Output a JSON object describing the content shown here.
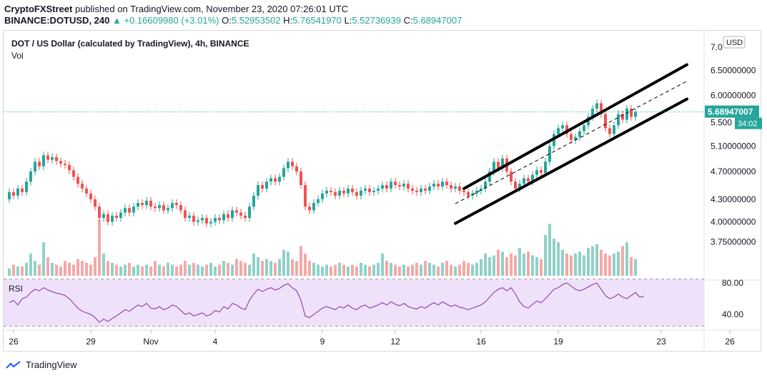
{
  "header": {
    "publisher": "CryptoFXStreet",
    "published_text": "published on TradingView.com, November 23, 2020 07:26:01 UTC",
    "symbol": "BINANCE:DOTUSD, 240",
    "change_arrow": "▲",
    "change": "+0.16609980 (+3.01%)",
    "o_label": "O:",
    "o_value": "5.52953502",
    "h_label": "H:",
    "h_value": "5.76541970",
    "l_label": "L:",
    "l_value": "5.52736939",
    "c_label": "C:",
    "c_value": "5.68947007"
  },
  "legend": {
    "title": "DOT / US Dollar (calculated by TradingView), 4h, BINANCE",
    "vol_label": "Vol"
  },
  "rsi_panel": {
    "label": "RSI",
    "ticks": [
      "80.00",
      "40.00"
    ]
  },
  "price_axis": {
    "currency": "USD",
    "ticks": [
      "7.0",
      "6.50000000",
      "6.00000000",
      "5.500",
      "5.10000000",
      "4.70000000",
      "4.30000000",
      "4.00000000",
      "3.75000000"
    ],
    "last_price": "5.68947007",
    "countdown": "34:02"
  },
  "time_axis": {
    "ticks": [
      "26",
      "29",
      "Nov",
      "4",
      "9",
      "12",
      "16",
      "19",
      "23",
      "26"
    ]
  },
  "footer": {
    "brand": "TradingView"
  },
  "colors": {
    "up": "#26a69a",
    "down": "#ef5350",
    "vol_up": "#8fd1c9",
    "vol_down": "#f4a9a7",
    "rsi": "#7e2f9c",
    "rsi_band": "#f0e1fb",
    "last_price": "#26a69a"
  },
  "chart_data": {
    "type": "candlestick",
    "title": "DOT / US Dollar (calculated by TradingView), 4h, BINANCE",
    "interval": "4h",
    "y_scale": "log",
    "ylim": [
      3.62,
      7.1
    ],
    "x_range_candles": 149,
    "candles": [
      [
        4.3,
        4.4
      ],
      [
        4.4,
        4.35
      ],
      [
        4.35,
        4.45
      ],
      [
        4.45,
        4.4
      ],
      [
        4.4,
        4.55
      ],
      [
        4.55,
        4.7
      ],
      [
        4.7,
        4.85
      ],
      [
        4.85,
        4.78
      ],
      [
        4.78,
        4.95
      ],
      [
        4.95,
        4.88
      ],
      [
        4.88,
        4.92
      ],
      [
        4.92,
        4.86
      ],
      [
        4.86,
        4.82
      ],
      [
        4.82,
        4.8
      ],
      [
        4.8,
        4.72
      ],
      [
        4.72,
        4.62
      ],
      [
        4.62,
        4.52
      ],
      [
        4.52,
        4.45
      ],
      [
        4.45,
        4.38
      ],
      [
        4.38,
        4.3
      ],
      [
        4.3,
        4.2
      ],
      [
        4.2,
        4.05
      ],
      [
        4.05,
        4.1
      ],
      [
        4.1,
        4.0
      ],
      [
        4.0,
        4.08
      ],
      [
        4.08,
        4.05
      ],
      [
        4.05,
        4.12
      ],
      [
        4.12,
        4.18
      ],
      [
        4.18,
        4.12
      ],
      [
        4.12,
        4.2
      ],
      [
        4.2,
        4.25
      ],
      [
        4.25,
        4.22
      ],
      [
        4.22,
        4.28
      ],
      [
        4.28,
        4.2
      ],
      [
        4.2,
        4.18
      ],
      [
        4.18,
        4.22
      ],
      [
        4.22,
        4.15
      ],
      [
        4.15,
        4.18
      ],
      [
        4.18,
        4.25
      ],
      [
        4.25,
        4.22
      ],
      [
        4.22,
        4.15
      ],
      [
        4.15,
        4.05
      ],
      [
        4.05,
        4.08
      ],
      [
        4.08,
        4.0
      ],
      [
        4.0,
        4.02
      ],
      [
        4.02,
        4.05
      ],
      [
        4.05,
        3.98
      ],
      [
        3.98,
        4.0
      ],
      [
        4.0,
        4.05
      ],
      [
        4.05,
        4.02
      ],
      [
        4.02,
        4.1
      ],
      [
        4.1,
        4.05
      ],
      [
        4.05,
        4.15
      ],
      [
        4.15,
        4.12
      ],
      [
        4.12,
        4.08
      ],
      [
        4.08,
        4.05
      ],
      [
        4.05,
        4.2
      ],
      [
        4.2,
        4.35
      ],
      [
        4.35,
        4.5
      ],
      [
        4.5,
        4.45
      ],
      [
        4.45,
        4.55
      ],
      [
        4.55,
        4.6
      ],
      [
        4.6,
        4.55
      ],
      [
        4.55,
        4.62
      ],
      [
        4.62,
        4.75
      ],
      [
        4.75,
        4.85
      ],
      [
        4.85,
        4.78
      ],
      [
        4.78,
        4.7
      ],
      [
        4.7,
        4.5
      ],
      [
        4.5,
        4.2
      ],
      [
        4.2,
        4.15
      ],
      [
        4.15,
        4.25
      ],
      [
        4.25,
        4.3
      ],
      [
        4.3,
        4.38
      ],
      [
        4.38,
        4.42
      ],
      [
        4.42,
        4.4
      ],
      [
        4.4,
        4.35
      ],
      [
        4.35,
        4.42
      ],
      [
        4.42,
        4.38
      ],
      [
        4.38,
        4.45
      ],
      [
        4.45,
        4.4
      ],
      [
        4.4,
        4.35
      ],
      [
        4.35,
        4.42
      ],
      [
        4.42,
        4.45
      ],
      [
        4.45,
        4.4
      ],
      [
        4.4,
        4.42
      ],
      [
        4.42,
        4.45
      ],
      [
        4.45,
        4.5
      ],
      [
        4.5,
        4.45
      ],
      [
        4.45,
        4.55
      ],
      [
        4.55,
        4.5
      ],
      [
        4.5,
        4.48
      ],
      [
        4.48,
        4.52
      ],
      [
        4.52,
        4.45
      ],
      [
        4.45,
        4.42
      ],
      [
        4.42,
        4.4
      ],
      [
        4.4,
        4.45
      ],
      [
        4.45,
        4.42
      ],
      [
        4.42,
        4.48
      ],
      [
        4.48,
        4.52
      ],
      [
        4.52,
        4.48
      ],
      [
        4.48,
        4.55
      ],
      [
        4.55,
        4.5
      ],
      [
        4.5,
        4.45
      ],
      [
        4.45,
        4.48
      ],
      [
        4.48,
        4.42
      ],
      [
        4.42,
        4.4
      ],
      [
        4.4,
        4.35
      ],
      [
        4.35,
        4.38
      ],
      [
        4.38,
        4.42
      ],
      [
        4.42,
        4.45
      ],
      [
        4.45,
        4.55
      ],
      [
        4.55,
        4.7
      ],
      [
        4.7,
        4.85
      ],
      [
        4.85,
        4.75
      ],
      [
        4.75,
        4.9
      ],
      [
        4.9,
        4.7
      ],
      [
        4.7,
        4.55
      ],
      [
        4.55,
        4.45
      ],
      [
        4.45,
        4.52
      ],
      [
        4.52,
        4.6
      ],
      [
        4.6,
        4.55
      ],
      [
        4.55,
        4.65
      ],
      [
        4.65,
        4.72
      ],
      [
        4.72,
        4.68
      ],
      [
        4.68,
        4.85
      ],
      [
        4.85,
        5.1
      ],
      [
        5.1,
        5.3
      ],
      [
        5.3,
        5.4
      ],
      [
        5.4,
        5.45
      ],
      [
        5.45,
        5.3
      ],
      [
        5.3,
        5.2
      ],
      [
        5.2,
        5.25
      ],
      [
        5.25,
        5.35
      ],
      [
        5.35,
        5.45
      ],
      [
        5.45,
        5.6
      ],
      [
        5.6,
        5.75
      ],
      [
        5.75,
        5.85
      ],
      [
        5.85,
        5.65
      ],
      [
        5.65,
        5.4
      ],
      [
        5.4,
        5.3
      ],
      [
        5.3,
        5.45
      ],
      [
        5.45,
        5.65
      ],
      [
        5.65,
        5.55
      ],
      [
        5.55,
        5.75
      ],
      [
        5.75,
        5.6
      ],
      [
        5.6,
        5.69
      ]
    ],
    "volume": [
      4,
      6,
      5,
      5,
      7,
      12,
      8,
      6,
      18,
      10,
      7,
      6,
      5,
      8,
      7,
      6,
      9,
      8,
      7,
      6,
      10,
      30,
      12,
      8,
      7,
      6,
      5,
      6,
      7,
      5,
      6,
      5,
      6,
      5,
      8,
      6,
      5,
      7,
      6,
      5,
      6,
      8,
      6,
      7,
      6,
      5,
      6,
      7,
      5,
      6,
      8,
      7,
      6,
      9,
      8,
      7,
      6,
      12,
      10,
      8,
      9,
      8,
      7,
      9,
      14,
      13,
      9,
      8,
      16,
      12,
      8,
      7,
      6,
      5,
      6,
      5,
      6,
      7,
      6,
      5,
      6,
      5,
      7,
      6,
      5,
      6,
      7,
      12,
      8,
      7,
      6,
      5,
      6,
      5,
      6,
      7,
      6,
      8,
      7,
      6,
      5,
      7,
      8,
      6,
      5,
      6,
      8,
      7,
      6,
      7,
      9,
      12,
      10,
      11,
      14,
      13,
      10,
      12,
      11,
      15,
      12,
      13,
      11,
      10,
      9,
      22,
      28,
      20,
      18,
      14,
      12,
      11,
      12,
      13,
      11,
      15,
      16,
      17,
      14,
      12,
      11,
      12,
      13,
      16,
      18,
      10,
      9,
      8,
      9
    ],
    "rsi": [
      55,
      58,
      52,
      60,
      62,
      68,
      72,
      70,
      74,
      71,
      69,
      67,
      66,
      64,
      60,
      54,
      48,
      44,
      42,
      40,
      36,
      30,
      34,
      31,
      35,
      38,
      42,
      46,
      44,
      48,
      52,
      50,
      54,
      48,
      47,
      50,
      46,
      48,
      52,
      50,
      45,
      40,
      42,
      38,
      40,
      42,
      38,
      40,
      45,
      43,
      50,
      47,
      54,
      52,
      48,
      46,
      58,
      66,
      72,
      69,
      72,
      74,
      71,
      73,
      77,
      79,
      74,
      70,
      58,
      38,
      36,
      40,
      44,
      48,
      50,
      48,
      46,
      50,
      48,
      52,
      48,
      46,
      50,
      52,
      48,
      50,
      52,
      55,
      52,
      56,
      53,
      51,
      54,
      50,
      48,
      47,
      50,
      48,
      52,
      55,
      52,
      56,
      53,
      50,
      52,
      49,
      48,
      46,
      48,
      50,
      52,
      56,
      62,
      68,
      72,
      74,
      70,
      74,
      66,
      56,
      50,
      48,
      53,
      57,
      55,
      60,
      66,
      72,
      74,
      78,
      80,
      76,
      72,
      70,
      72,
      75,
      78,
      80,
      72,
      64,
      60,
      62,
      66,
      62,
      60,
      64,
      68,
      62,
      63
    ]
  }
}
